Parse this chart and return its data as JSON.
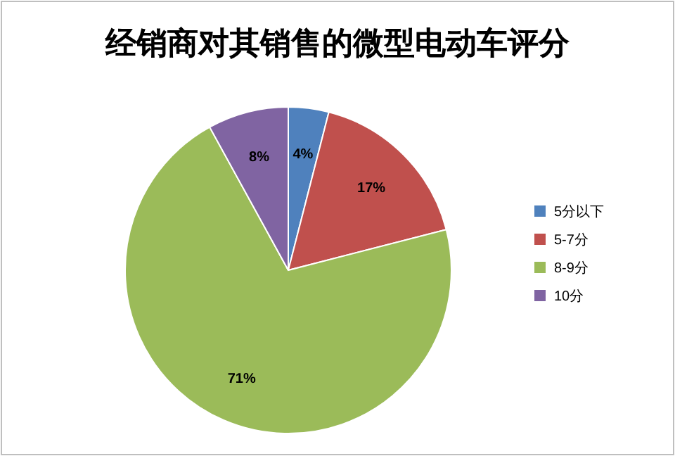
{
  "chart_data": {
    "type": "pie",
    "title": "经销商对其销售的微型电动车评分",
    "categories": [
      "5分以下",
      "5-7分",
      "8-9分",
      "10分"
    ],
    "values": [
      4,
      17,
      71,
      8
    ],
    "colors": [
      "#4f81bd",
      "#c0504d",
      "#9bbb59",
      "#8064a2"
    ],
    "value_labels": [
      "4%",
      "17%",
      "71%",
      "8%"
    ],
    "legend": "right"
  }
}
